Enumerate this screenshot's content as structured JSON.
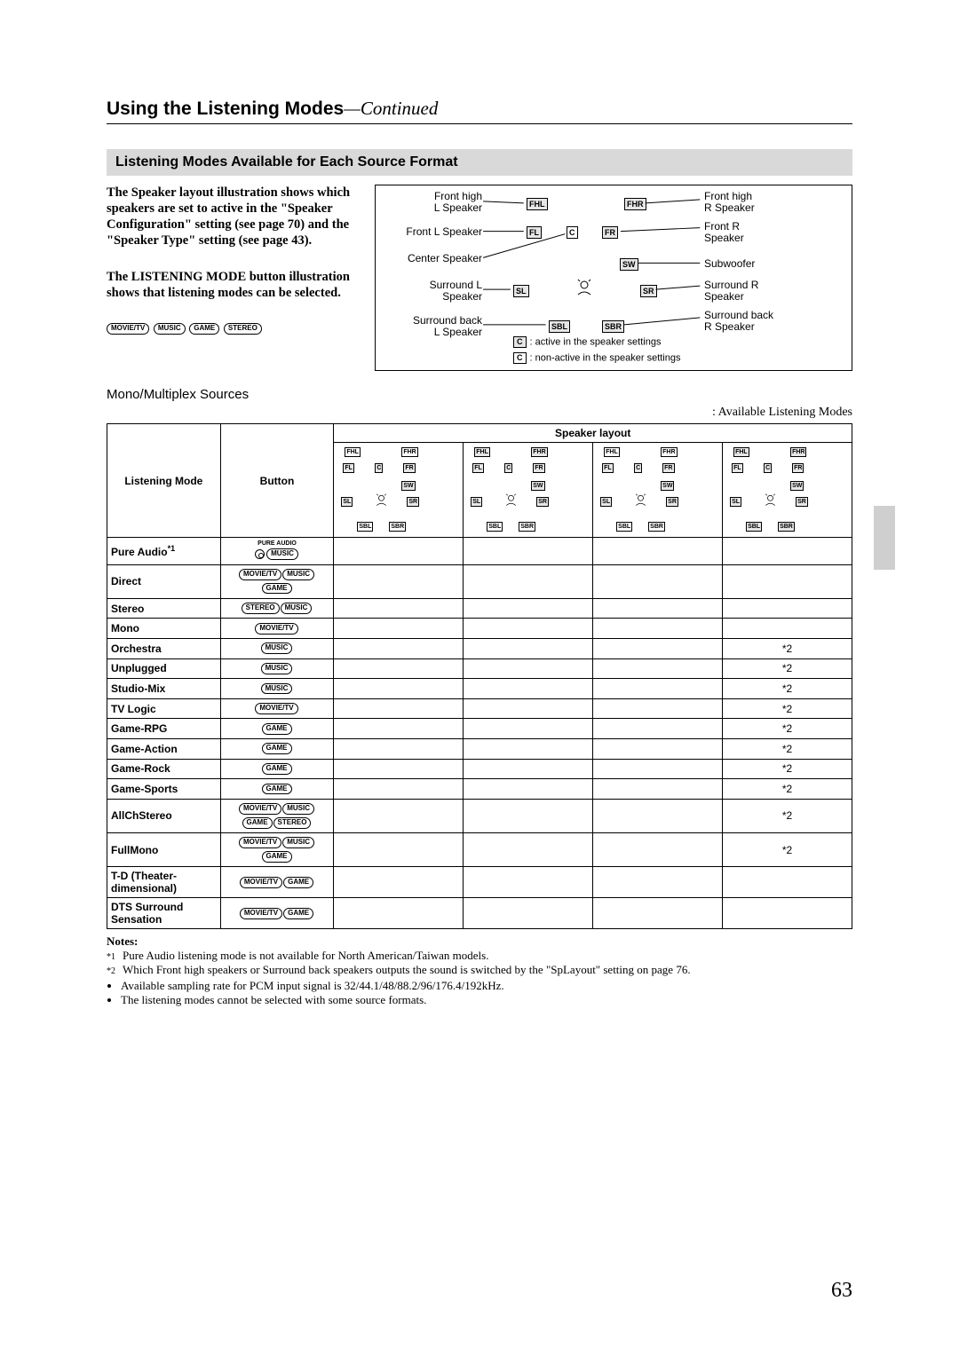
{
  "page": {
    "title_main": "Using the Listening Modes",
    "title_cont": "—Continued",
    "page_number": "63"
  },
  "band": "Listening Modes Available for Each Source Format",
  "intro": {
    "para1": "The Speaker layout illustration shows which speakers are set to active in the \"Speaker Configuration\" setting (see page 70) and the \"Speaker Type\" setting (see page 43).",
    "para2": "The LISTENING MODE button illustration shows that listening modes can be selected.",
    "pills": [
      "MOVIE/TV",
      "MUSIC",
      "GAME",
      "STEREO"
    ]
  },
  "diagram": {
    "labels": {
      "fhl": "Front high\nL Speaker",
      "fhr": "Front high\nR Speaker",
      "fl": "Front L Speaker",
      "fr": "Front R\nSpeaker",
      "c": "Center Speaker",
      "sw": "Subwoofer",
      "sl": "Surround L\nSpeaker",
      "sr": "Surround R\nSpeaker",
      "sbl": "Surround back\nL Speaker",
      "sbr": "Surround back\nR Speaker"
    },
    "boxes": {
      "FHL": "FHL",
      "FHR": "FHR",
      "FL": "FL",
      "C": "C",
      "FR": "FR",
      "SW": "SW",
      "SL": "SL",
      "SR": "SR",
      "SBL": "SBL",
      "SBR": "SBR"
    },
    "legend_active": ": active in the speaker settings",
    "legend_nonactive": ": non-active in the speaker settings",
    "legend_C": "C"
  },
  "source_heading": "Mono/Multiplex Sources",
  "avail_label": ": Available Listening Modes",
  "table": {
    "head_mode": "Listening Mode",
    "head_button": "Button",
    "head_layout": "Speaker layout",
    "layouts": [
      {
        "gray": [
          "FL",
          "C",
          "FR",
          "SW",
          "SL",
          "SR"
        ],
        "white": [
          "FHL",
          "FHR",
          "SBL",
          "SBR"
        ]
      },
      {
        "gray": [
          "FHL",
          "FHR",
          "FL",
          "C",
          "FR",
          "SW",
          "SL",
          "SR"
        ],
        "white": [
          "SBL",
          "SBR"
        ]
      },
      {
        "gray": [
          "FL",
          "C",
          "FR",
          "SW",
          "SL",
          "SR"
        ],
        "white": [
          "FHL",
          "FHR",
          "SBL",
          "SBR"
        ],
        "fhl_off_gray": true
      },
      {
        "gray": [
          "FHL",
          "FHR",
          "FL",
          "C",
          "FR",
          "SW",
          "SL",
          "SR",
          "SBL",
          "SBR"
        ],
        "white": []
      }
    ],
    "pure_audio_label": "PURE AUDIO",
    "rows": [
      {
        "name": "Pure Audio",
        "sup": "*1",
        "btns": [
          "PUREICON",
          "MUSIC"
        ],
        "marks": [
          "",
          "",
          "",
          ""
        ]
      },
      {
        "name": "Direct",
        "btns": [
          "MOVIE/TV",
          "MUSIC",
          "GAME"
        ],
        "marks": [
          "",
          "",
          "",
          ""
        ]
      },
      {
        "name": "Stereo",
        "btns": [
          "STEREO",
          "MUSIC"
        ],
        "marks": [
          "",
          "",
          "",
          ""
        ]
      },
      {
        "name": "Mono",
        "btns": [
          "MOVIE/TV"
        ],
        "marks": [
          "",
          "",
          "",
          ""
        ]
      },
      {
        "name": "Orchestra",
        "btns": [
          "MUSIC"
        ],
        "marks": [
          "",
          "",
          "",
          "*2"
        ]
      },
      {
        "name": "Unplugged",
        "btns": [
          "MUSIC"
        ],
        "marks": [
          "",
          "",
          "",
          "*2"
        ]
      },
      {
        "name": "Studio-Mix",
        "btns": [
          "MUSIC"
        ],
        "marks": [
          "",
          "",
          "",
          "*2"
        ]
      },
      {
        "name": "TV Logic",
        "btns": [
          "MOVIE/TV"
        ],
        "marks": [
          "",
          "",
          "",
          "*2"
        ]
      },
      {
        "name": "Game-RPG",
        "btns": [
          "GAME"
        ],
        "marks": [
          "",
          "",
          "",
          "*2"
        ]
      },
      {
        "name": "Game-Action",
        "btns": [
          "GAME"
        ],
        "marks": [
          "",
          "",
          "",
          "*2"
        ]
      },
      {
        "name": "Game-Rock",
        "btns": [
          "GAME"
        ],
        "marks": [
          "",
          "",
          "",
          "*2"
        ]
      },
      {
        "name": "Game-Sports",
        "btns": [
          "GAME"
        ],
        "marks": [
          "",
          "",
          "",
          "*2"
        ]
      },
      {
        "name": "AllChStereo",
        "btns": [
          "MOVIE/TV",
          "MUSIC",
          "GAME",
          "STEREO"
        ],
        "two_lines": true,
        "marks": [
          "",
          "",
          "",
          "*2"
        ]
      },
      {
        "name": "FullMono",
        "btns": [
          "MOVIE/TV",
          "MUSIC",
          "GAME"
        ],
        "marks": [
          "",
          "",
          "",
          "*2"
        ]
      },
      {
        "name": "T-D (Theater-dimensional)",
        "btns": [
          "MOVIE/TV",
          "GAME"
        ],
        "marks": [
          "",
          "",
          "",
          ""
        ]
      },
      {
        "name": "DTS Surround Sensation",
        "btns": [
          "MOVIE/TV",
          "GAME"
        ],
        "marks": [
          "",
          "",
          "",
          ""
        ]
      }
    ]
  },
  "notes": {
    "heading": "Notes:",
    "n1": "Pure Audio listening mode is not available for North American/Taiwan models.",
    "n2": "Which Front high speakers or Surround back speakers outputs the sound is switched by the \"SpLayout\" setting on page 76.",
    "b1": "Available sampling rate for PCM input signal is 32/44.1/48/88.2/96/176.4/192kHz.",
    "b2": "The listening modes cannot be selected with some source formats.",
    "star1": "*1",
    "star2": "*2"
  }
}
